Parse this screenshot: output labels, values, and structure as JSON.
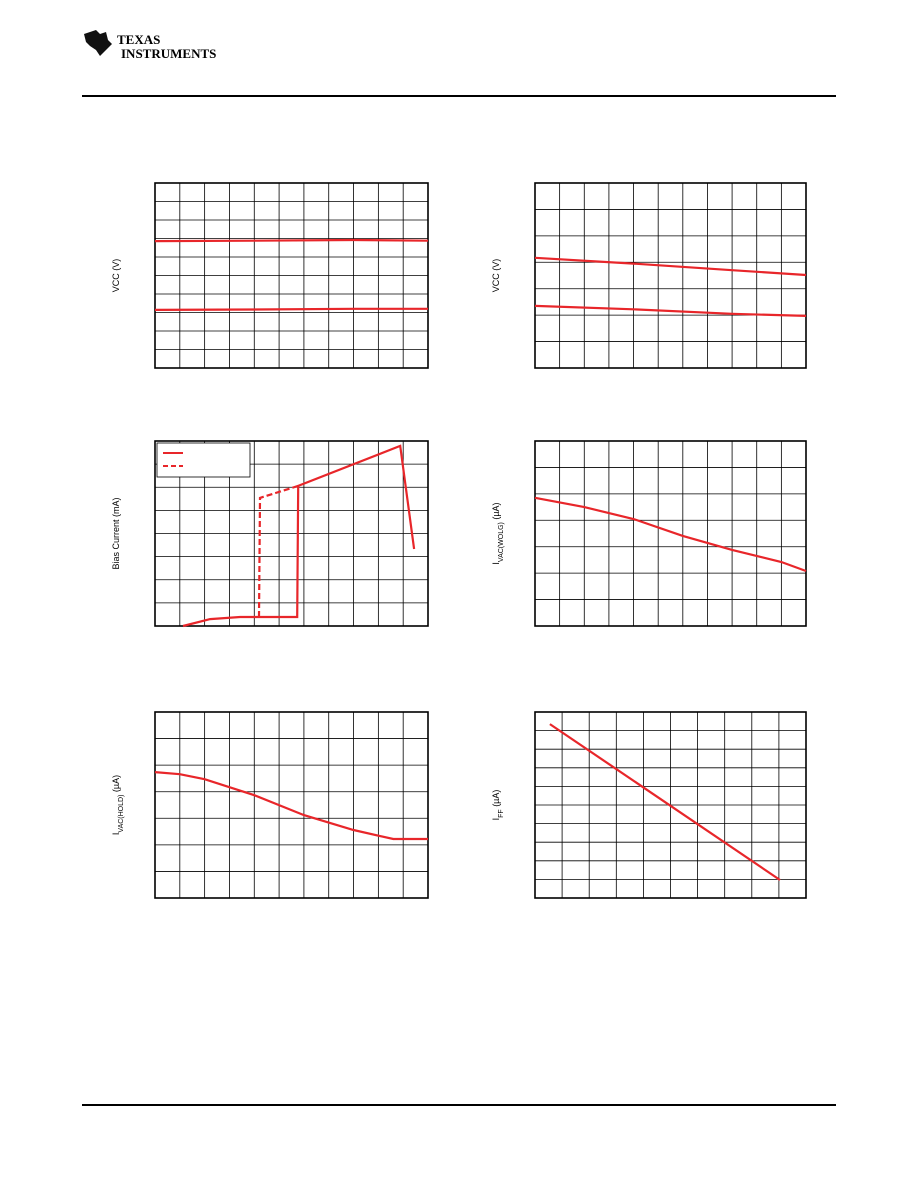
{
  "header": {
    "logo_line1": "TEXAS",
    "logo_line2": "INSTRUMENTS"
  },
  "chart_data": [
    {
      "type": "line",
      "y_label_parts": [
        "VCC (V)"
      ],
      "xlim": [
        0,
        11
      ],
      "ylim": [
        0,
        10
      ],
      "xticks": [
        0,
        1,
        2,
        3,
        4,
        5,
        6,
        7,
        8,
        9,
        10,
        11
      ],
      "yticks": [
        0,
        1,
        2,
        3,
        4,
        5,
        6,
        7,
        8,
        9,
        10
      ],
      "grid": true,
      "series": [
        {
          "color": "#e8262a",
          "x": [
            0,
            4,
            8,
            11
          ],
          "values": [
            6.86,
            6.88,
            6.92,
            6.88
          ]
        },
        {
          "color": "#e8262a",
          "x": [
            0,
            4,
            8,
            11
          ],
          "values": [
            3.14,
            3.16,
            3.2,
            3.2
          ]
        }
      ]
    },
    {
      "type": "line",
      "y_label_parts": [
        "VCC (V)"
      ],
      "xlim": [
        0,
        11
      ],
      "ylim": [
        0,
        7
      ],
      "xticks": [
        0,
        1,
        2,
        3,
        4,
        5,
        6,
        7,
        8,
        9,
        10,
        11
      ],
      "yticks": [
        0,
        1,
        2,
        3,
        4,
        5,
        6,
        7
      ],
      "grid": true,
      "series": [
        {
          "color": "#e8262a",
          "x": [
            0,
            4,
            8,
            11
          ],
          "values": [
            4.17,
            3.95,
            3.7,
            3.52
          ]
        },
        {
          "color": "#e8262a",
          "x": [
            0,
            4,
            8,
            11
          ],
          "values": [
            2.35,
            2.22,
            2.05,
            1.97
          ]
        }
      ]
    },
    {
      "type": "line",
      "y_label_parts": [
        "Bias Current (mA)"
      ],
      "xlim": [
        0,
        11
      ],
      "ylim": [
        0,
        8
      ],
      "xticks": [
        0,
        1,
        2,
        3,
        4,
        5,
        6,
        7,
        8,
        9,
        10,
        11
      ],
      "yticks": [
        0,
        1,
        2,
        3,
        4,
        5,
        6,
        7,
        8
      ],
      "grid": true,
      "legend": "upper left",
      "series": [
        {
          "color": "#e8262a",
          "dash": false,
          "x": [
            1.13,
            2.22,
            3.43,
            5.73,
            5.77,
            9.88,
            10.44
          ],
          "values": [
            0,
            0.3,
            0.39,
            0.39,
            6.06,
            7.79,
            3.33
          ]
        },
        {
          "color": "#e8262a",
          "dash": true,
          "x": [
            4.19,
            4.23,
            5.77
          ],
          "values": [
            0.39,
            5.54,
            6.06
          ]
        }
      ]
    },
    {
      "type": "line",
      "y_label_parts": [
        "I",
        "VAC(WOLG)",
        " (µA)"
      ],
      "xlim": [
        0,
        11
      ],
      "ylim": [
        0,
        7
      ],
      "xticks": [
        0,
        1,
        2,
        3,
        4,
        5,
        6,
        7,
        8,
        9,
        10,
        11
      ],
      "yticks": [
        0,
        1,
        2,
        3,
        4,
        5,
        6,
        7
      ],
      "grid": true,
      "series": [
        {
          "color": "#e8262a",
          "x": [
            0,
            2,
            4,
            6,
            8,
            10,
            11
          ],
          "values": [
            4.85,
            4.5,
            4.05,
            3.41,
            2.88,
            2.42,
            2.08
          ]
        }
      ]
    },
    {
      "type": "line",
      "y_label_parts": [
        "I",
        "VAC(HOLD)",
        " (µA)"
      ],
      "xlim": [
        0,
        11
      ],
      "ylim": [
        0,
        7
      ],
      "xticks": [
        0,
        1,
        2,
        3,
        4,
        5,
        6,
        7,
        8,
        9,
        10,
        11
      ],
      "yticks": [
        0,
        1,
        2,
        3,
        4,
        5,
        6,
        7
      ],
      "grid": true,
      "series": [
        {
          "color": "#e8262a",
          "x": [
            0,
            1,
            2,
            4,
            6,
            8,
            9.6,
            11
          ],
          "values": [
            4.74,
            4.66,
            4.47,
            3.87,
            3.12,
            2.56,
            2.22,
            2.22
          ]
        }
      ]
    },
    {
      "type": "line",
      "y_label_parts": [
        "I",
        "FF",
        " (µA)"
      ],
      "xlim": [
        0,
        10
      ],
      "ylim": [
        0,
        10
      ],
      "xticks": [
        0,
        1,
        2,
        3,
        4,
        5,
        6,
        7,
        8,
        9,
        10
      ],
      "yticks": [
        0,
        1,
        2,
        3,
        4,
        5,
        6,
        7,
        8,
        9,
        10
      ],
      "grid": true,
      "series": [
        {
          "color": "#e8262a",
          "x": [
            0.55,
            9.04
          ],
          "values": [
            9.35,
            0.97
          ]
        }
      ]
    }
  ]
}
